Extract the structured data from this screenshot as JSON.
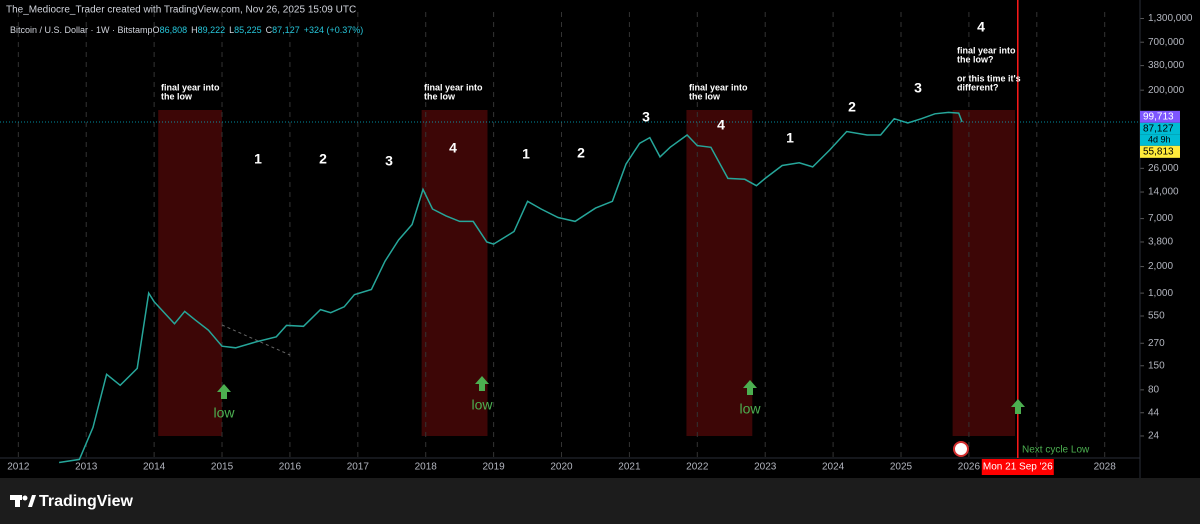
{
  "header": "The_Mediocre_Trader created with TradingView.com, Nov 26, 2025 15:09 UTC",
  "footer": "TradingView",
  "chart_data": {
    "type": "line",
    "symbol": "Bitcoin / U.S. Dollar · 1W · Bitstamp",
    "ohlc_keys": [
      "O",
      "H",
      "L",
      "C"
    ],
    "ohlc_values": [
      "86,808",
      "89,222",
      "85,225",
      "87,127"
    ],
    "change": "+324 (+0.37%)",
    "log_scale": true,
    "grid": true,
    "xlim": [
      2011.73,
      2028.52
    ],
    "ylim": [
      13.5,
      1540000
    ],
    "xticks": [
      2012,
      2013,
      2014,
      2015,
      2016,
      2017,
      2018,
      2019,
      2020,
      2021,
      2022,
      2023,
      2024,
      2025,
      2026,
      2027,
      2028
    ],
    "yticks": [
      24,
      44,
      80,
      150,
      270,
      550,
      {
        "value": 1000,
        "label": "1,000"
      },
      {
        "value": 2000,
        "label": "2,000"
      },
      {
        "value": 3800,
        "label": "3,800"
      },
      {
        "value": 7000,
        "label": "7,000"
      },
      {
        "value": 14000,
        "label": "14,000"
      },
      {
        "value": 26000,
        "label": "26,000"
      },
      {
        "value": 200000,
        "label": "200,000"
      },
      {
        "value": 380000,
        "label": "380,000"
      },
      {
        "value": 700000,
        "label": "700,000"
      },
      {
        "value": 1300000,
        "label": "1,300,000"
      }
    ],
    "series": [
      {
        "name": "BTCUSD",
        "color": "#26a69a",
        "x": [
          2012.6,
          2012.9,
          2013.1,
          2013.3,
          2013.5,
          2013.75,
          2013.92,
          2014.0,
          2014.15,
          2014.3,
          2014.45,
          2014.6,
          2014.8,
          2015.0,
          2015.2,
          2015.5,
          2015.8,
          2015.95,
          2016.2,
          2016.45,
          2016.6,
          2016.8,
          2016.95,
          2017.2,
          2017.4,
          2017.6,
          2017.8,
          2017.96,
          2018.1,
          2018.3,
          2018.5,
          2018.7,
          2018.9,
          2019.0,
          2019.3,
          2019.5,
          2019.7,
          2019.95,
          2020.2,
          2020.5,
          2020.75,
          2020.95,
          2021.15,
          2021.3,
          2021.45,
          2021.6,
          2021.85,
          2022.0,
          2022.2,
          2022.45,
          2022.7,
          2022.87,
          2023.0,
          2023.25,
          2023.5,
          2023.7,
          2023.95,
          2024.2,
          2024.5,
          2024.7,
          2024.9,
          2025.1,
          2025.3,
          2025.5,
          2025.7,
          2025.85,
          2025.9
        ],
        "values": [
          12,
          13,
          30,
          120,
          90,
          140,
          1000,
          800,
          600,
          450,
          620,
          500,
          380,
          250,
          240,
          280,
          320,
          430,
          420,
          650,
          600,
          700,
          960,
          1100,
          2300,
          4000,
          6000,
          15000,
          9000,
          7500,
          6500,
          6500,
          3800,
          3600,
          5000,
          11000,
          9000,
          7200,
          6500,
          9200,
          11000,
          29000,
          50000,
          58000,
          35000,
          45000,
          62000,
          47000,
          45000,
          20000,
          19500,
          16500,
          20000,
          28000,
          30000,
          27000,
          42000,
          68000,
          62000,
          62000,
          95000,
          85000,
          95000,
          108000,
          112000,
          110000,
          87127
        ]
      }
    ],
    "zones": [
      [
        2014.06,
        2015.0
      ],
      [
        2017.94,
        2018.91
      ],
      [
        2021.84,
        2022.81
      ],
      [
        2025.76,
        2026.68
      ]
    ],
    "zone_color": "#3d0606",
    "zone_labels": [
      [
        "final year into",
        "the low"
      ],
      [
        "final year into",
        "the low"
      ],
      [
        "final year into",
        "the low"
      ],
      [
        "final year into",
        "the low?",
        "or this time it's",
        "different?"
      ]
    ],
    "phase_labels": [
      "1",
      "2",
      "3",
      "4",
      "1",
      "2",
      "3",
      "4",
      "1",
      "2",
      "3",
      "4"
    ],
    "low_labels": [
      "low",
      "low",
      "low"
    ],
    "next_low_label": "Next cycle Low",
    "cycle_line_x": 2026.72,
    "cycle_line_label": "Mon 21 Sep '26",
    "price_labels": [
      {
        "value": 99713,
        "label": "99,713",
        "color": "#7e57ff"
      },
      {
        "value": 87127,
        "label": "87,127",
        "color": "#00bcd4"
      },
      {
        "value": 55813,
        "label": "55,813",
        "color": "#ffeb3b"
      }
    ],
    "countdown": "4d 9h"
  }
}
